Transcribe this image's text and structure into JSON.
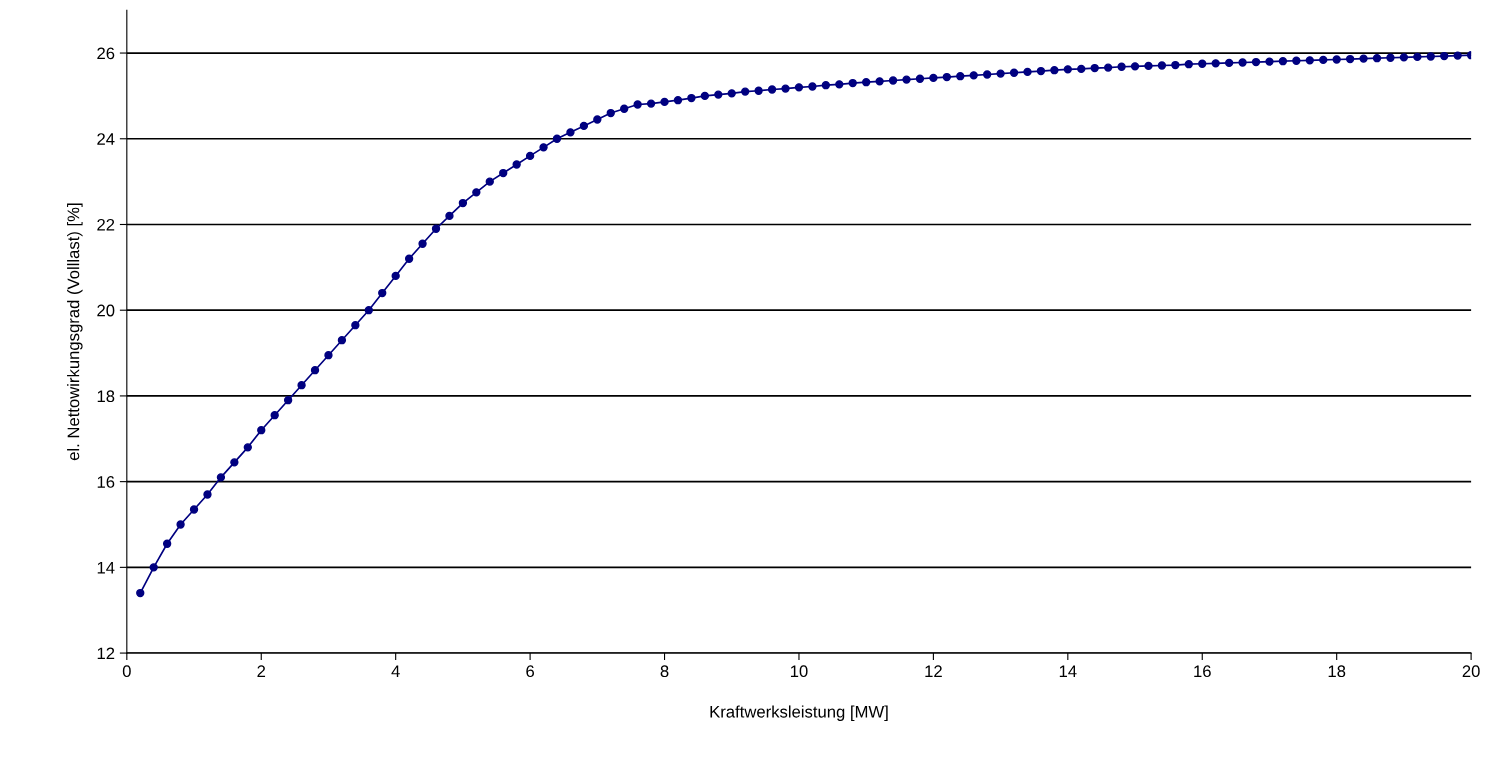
{
  "chart_data": {
    "type": "line",
    "xlabel": "Kraftwerksleistung [MW]",
    "ylabel": "el. Nettowirkungsgrad (Volllast) [%]",
    "x": [
      0.2,
      0.4,
      0.6,
      0.8,
      1.0,
      1.2,
      1.4,
      1.6,
      1.8,
      2.0,
      2.2,
      2.4,
      2.6,
      2.8,
      3.0,
      3.2,
      3.4,
      3.6,
      3.8,
      4.0,
      4.2,
      4.4,
      4.6,
      4.8,
      5.0,
      5.2,
      5.4,
      5.6,
      5.8,
      6.0,
      6.2,
      6.4,
      6.6,
      6.8,
      7.0,
      7.2,
      7.4,
      7.6,
      7.8,
      8.0,
      8.2,
      8.4,
      8.6,
      8.8,
      9.0,
      9.2,
      9.4,
      9.6,
      9.8,
      10.0,
      10.2,
      10.4,
      10.6,
      10.8,
      11.0,
      11.2,
      11.4,
      11.6,
      11.8,
      12.0,
      12.2,
      12.4,
      12.6,
      12.8,
      13.0,
      13.2,
      13.4,
      13.6,
      13.8,
      14.0,
      14.2,
      14.4,
      14.6,
      14.8,
      15.0,
      15.2,
      15.4,
      15.6,
      15.8,
      16.0,
      16.2,
      16.4,
      16.6,
      16.8,
      17.0,
      17.2,
      17.4,
      17.6,
      17.8,
      18.0,
      18.2,
      18.4,
      18.6,
      18.8,
      19.0,
      19.2,
      19.4,
      19.6,
      19.8,
      20.0
    ],
    "series": [
      {
        "color": "#000080",
        "values": [
          13.4,
          14.0,
          14.55,
          15.0,
          15.35,
          15.7,
          16.1,
          16.45,
          16.8,
          17.2,
          17.55,
          17.9,
          18.25,
          18.6,
          18.95,
          19.3,
          19.65,
          20.0,
          20.4,
          20.8,
          21.2,
          21.55,
          21.9,
          22.2,
          22.5,
          22.75,
          23.0,
          23.2,
          23.4,
          23.6,
          23.8,
          24.0,
          24.15,
          24.3,
          24.45,
          24.6,
          24.7,
          24.8,
          24.82,
          24.86,
          24.9,
          24.95,
          25.0,
          25.03,
          25.06,
          25.1,
          25.12,
          25.15,
          25.17,
          25.2,
          25.22,
          25.25,
          25.27,
          25.3,
          25.32,
          25.34,
          25.36,
          25.38,
          25.4,
          25.42,
          25.44,
          25.46,
          25.48,
          25.5,
          25.52,
          25.54,
          25.56,
          25.58,
          25.6,
          25.62,
          25.63,
          25.65,
          25.66,
          25.68,
          25.69,
          25.7,
          25.71,
          25.72,
          25.74,
          25.75,
          25.76,
          25.77,
          25.78,
          25.79,
          25.8,
          25.81,
          25.82,
          25.83,
          25.84,
          25.85,
          25.86,
          25.87,
          25.88,
          25.89,
          25.9,
          25.91,
          25.92,
          25.93,
          25.94,
          25.95
        ]
      }
    ],
    "xlim": [
      0,
      20
    ],
    "xticks": [
      0,
      2,
      4,
      6,
      8,
      10,
      12,
      14,
      16,
      18,
      20
    ],
    "ylim": [
      12,
      27
    ],
    "yticks": [
      12,
      14,
      16,
      18,
      20,
      22,
      24,
      26
    ],
    "grid": "y",
    "marker": "circle",
    "line_style": "solid"
  }
}
